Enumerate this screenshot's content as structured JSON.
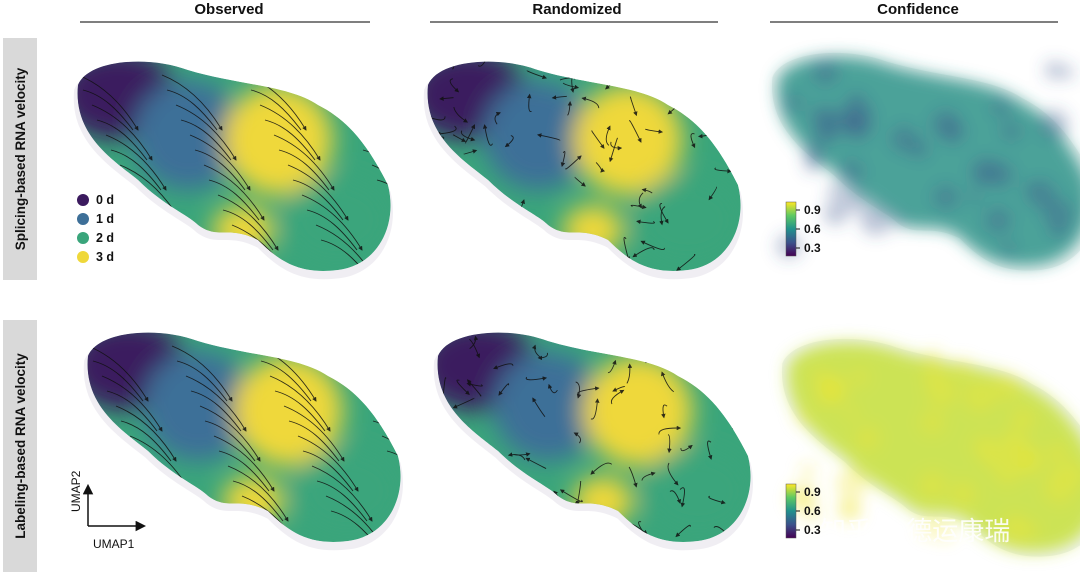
{
  "columns": [
    {
      "title": "Observed"
    },
    {
      "title": "Randomized"
    },
    {
      "title": "Confidence"
    }
  ],
  "rows": [
    {
      "label": "Splicing-based RNA velocity"
    },
    {
      "label": "Labeling-based RNA velocity"
    }
  ],
  "legend": {
    "items": [
      {
        "label": "0 d",
        "color": "#3b1a5e"
      },
      {
        "label": "1 d",
        "color": "#3d6f98"
      },
      {
        "label": "2 d",
        "color": "#3aa57b"
      },
      {
        "label": "3 d",
        "color": "#efd83a"
      }
    ]
  },
  "colorbar": {
    "ticks": [
      "0.9",
      "0.6",
      "0.3"
    ],
    "colors": [
      "#fde725",
      "#5ec962",
      "#21918c",
      "#3b528b",
      "#440154"
    ]
  },
  "axes": {
    "x": "UMAP1",
    "y": "UMAP2"
  },
  "confidence_fill": {
    "splicing": "#2f9489",
    "labeling": "#c7e03a"
  },
  "watermark": "知乎 @德运康瑞"
}
